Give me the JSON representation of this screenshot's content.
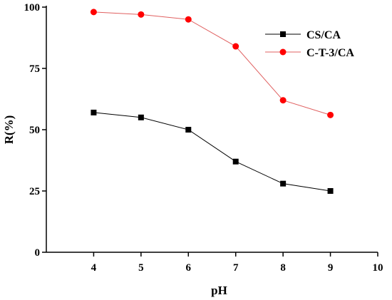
{
  "chart_data": {
    "type": "line",
    "title": "",
    "xlabel": "pH",
    "ylabel": "R(%)",
    "xlim": [
      3,
      10
    ],
    "ylim": [
      0,
      100
    ],
    "x_ticks": [
      4,
      5,
      6,
      7,
      8,
      9,
      10
    ],
    "y_ticks": [
      0,
      25,
      50,
      75,
      100
    ],
    "grid": false,
    "legend_position": "top-right",
    "series": [
      {
        "name": "CS/CA",
        "marker": "square",
        "color": "#000000",
        "line_color": "#000000",
        "x": [
          4,
          5,
          6,
          7,
          8,
          9
        ],
        "values": [
          57,
          55,
          50,
          37,
          28,
          25
        ]
      },
      {
        "name": "C-T-3/CA",
        "marker": "circle",
        "color": "#ff0000",
        "line_color": "#e06060",
        "x": [
          4,
          5,
          6,
          7,
          8,
          9
        ],
        "values": [
          98,
          97,
          95,
          84,
          62,
          56
        ]
      }
    ]
  }
}
